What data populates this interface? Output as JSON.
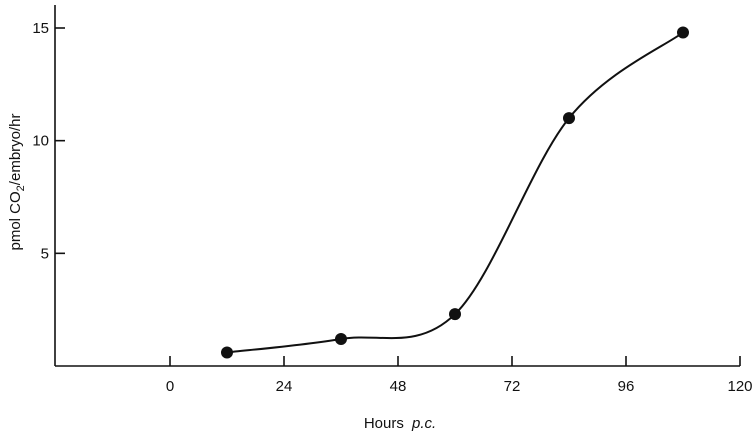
{
  "chart_data": {
    "type": "line",
    "title": "",
    "xlabel": "Hours",
    "xlabel_suffix": "p.c.",
    "ylabel_parts": {
      "pre": "pmol CO",
      "sub": "2",
      "post": "/embryo/hr"
    },
    "xlim": [
      -24,
      120
    ],
    "ylim": [
      0,
      16
    ],
    "xticks": [
      0,
      24,
      48,
      72,
      96,
      120
    ],
    "yticks": [
      5,
      10,
      15
    ],
    "grid": false,
    "series": [
      {
        "x": [
          12,
          36,
          60,
          84,
          108
        ],
        "y": [
          0.6,
          1.2,
          2.3,
          11.0,
          14.8
        ]
      }
    ]
  }
}
